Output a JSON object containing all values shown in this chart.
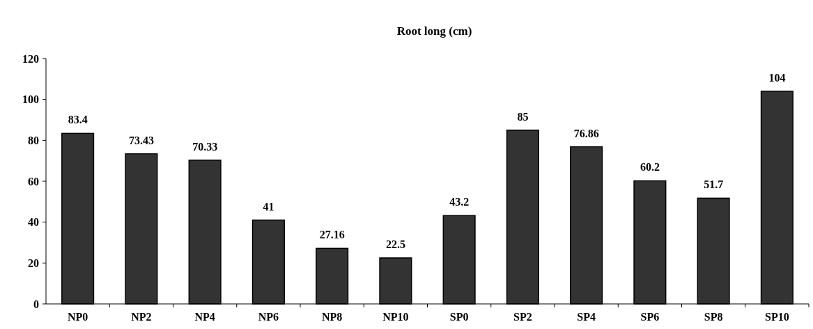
{
  "chart_data": {
    "type": "bar",
    "title": "Root long (cm)",
    "categories": [
      "NP0",
      "NP2",
      "NP4",
      "NP6",
      "NP8",
      "NP10",
      "SP0",
      "SP2",
      "SP4",
      "SP6",
      "SP8",
      "SP10"
    ],
    "values": [
      83.4,
      73.43,
      70.33,
      41,
      27.16,
      22.5,
      43.2,
      85,
      76.86,
      60.2,
      51.7,
      104
    ],
    "color": "#333333",
    "ylim": [
      0,
      120
    ],
    "yticks": [
      0,
      20,
      40,
      60,
      80,
      100,
      120
    ],
    "grid": false,
    "data_labels": true
  }
}
